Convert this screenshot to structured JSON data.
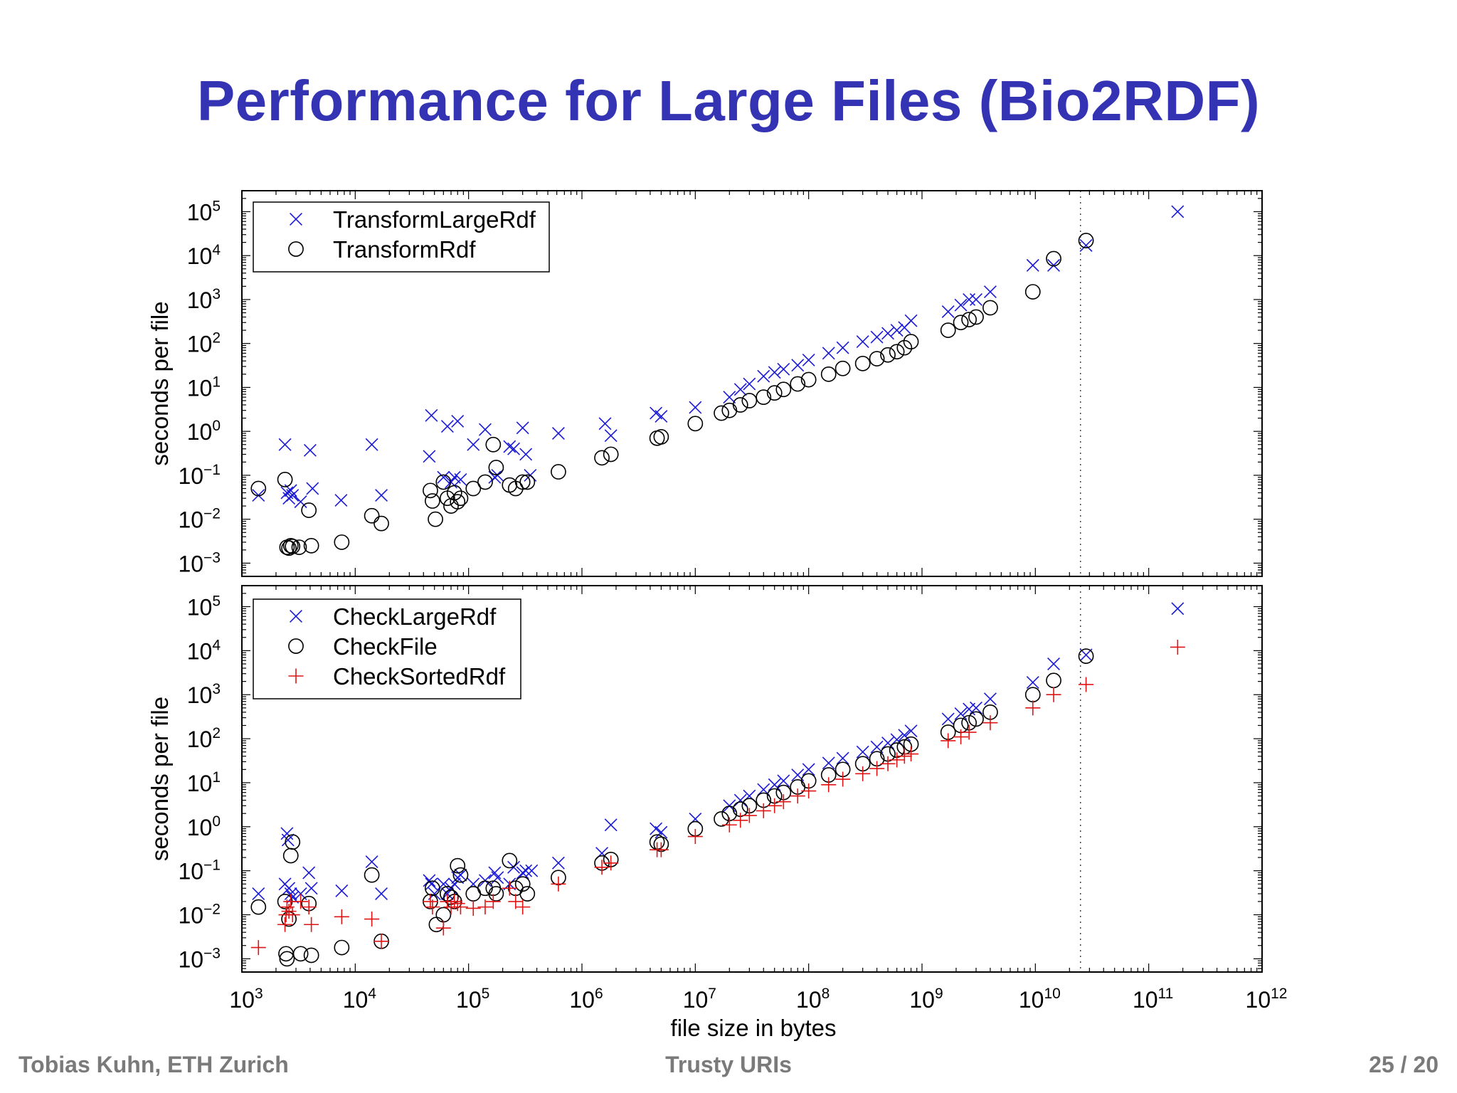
{
  "slide": {
    "title": "Performance for Large Files (Bio2RDF)",
    "footer_left": "Tobias Kuhn, ETH Zurich",
    "footer_center": "Trusty URIs",
    "footer_right": "25 / 20"
  },
  "chart_data": [
    {
      "type": "scatter",
      "panel": "top",
      "x_scale": "log",
      "y_scale": "log",
      "xlim": [
        1000,
        1000000000000
      ],
      "ylim": [
        0.0005,
        300000
      ],
      "ylabel": "seconds per file",
      "xlabel": "",
      "x_tick_labels": [],
      "y_ticks": [
        {
          "value": 0.001,
          "base": "10",
          "exp": "−3"
        },
        {
          "value": 0.01,
          "base": "10",
          "exp": "−2"
        },
        {
          "value": 0.1,
          "base": "10",
          "exp": "−1"
        },
        {
          "value": 1,
          "base": "10",
          "exp": "0"
        },
        {
          "value": 10,
          "base": "10",
          "exp": "1"
        },
        {
          "value": 100,
          "base": "10",
          "exp": "2"
        },
        {
          "value": 1000,
          "base": "10",
          "exp": "3"
        },
        {
          "value": 10000,
          "base": "10",
          "exp": "4"
        },
        {
          "value": 100000,
          "base": "10",
          "exp": "5"
        }
      ],
      "reference_line_x": 25000000000,
      "legend_position": "top-left",
      "series": [
        {
          "name": "TransformLargeRdf",
          "marker": "x",
          "color": "#1a1ad6",
          "x": [
            1400,
            2400,
            2500,
            2600,
            2700,
            2800,
            3300,
            4000,
            4200,
            7500,
            14000,
            17000,
            45000,
            47000,
            60000,
            65000,
            70000,
            75000,
            80000,
            85000,
            110000,
            140000,
            170000,
            180000,
            230000,
            250000,
            300000,
            320000,
            350000,
            620000,
            1600000,
            1800000,
            4500000,
            5000000,
            10000000,
            20000000,
            25000000,
            30000000,
            40000000,
            50000000,
            60000000,
            80000000,
            100000000,
            150000000,
            200000000,
            300000000,
            400000000,
            500000000,
            600000000,
            700000000,
            800000000,
            1700000000,
            2200000000,
            2600000000,
            3000000000,
            4000000000,
            9500000000,
            14500000000,
            28000000000,
            180000000000
          ],
          "y": [
            0.035,
            0.5,
            0.04,
            0.03,
            0.045,
            0.035,
            0.025,
            0.37,
            0.05,
            0.027,
            0.5,
            0.035,
            0.27,
            2.3,
            0.09,
            1.3,
            0.07,
            0.09,
            1.7,
            0.08,
            0.5,
            1.1,
            0.09,
            0.1,
            0.45,
            0.4,
            1.2,
            0.3,
            0.1,
            0.9,
            1.5,
            0.8,
            2.6,
            2.2,
            3.5,
            6,
            9,
            12,
            18,
            22,
            26,
            32,
            42,
            60,
            80,
            110,
            140,
            170,
            200,
            230,
            330,
            530,
            750,
            1000,
            1000,
            1500,
            6000,
            6000,
            17000,
            100000
          ]
        },
        {
          "name": "TransformRdf",
          "marker": "o",
          "color": "#000000",
          "x": [
            1400,
            2400,
            2500,
            2600,
            2700,
            2800,
            3200,
            3900,
            4100,
            7600,
            14000,
            17000,
            46000,
            48000,
            51000,
            60000,
            65000,
            70000,
            75000,
            80000,
            85000,
            110000,
            140000,
            165000,
            175000,
            230000,
            260000,
            300000,
            330000,
            620000,
            1500000,
            1800000,
            4600000,
            5000000,
            10000000,
            17000000,
            20000000,
            25000000,
            30000000,
            40000000,
            50000000,
            60000000,
            80000000,
            100000000,
            150000000,
            200000000,
            300000000,
            400000000,
            500000000,
            600000000,
            700000000,
            800000000,
            1700000000,
            2200000000,
            2600000000,
            3000000000,
            4000000000,
            9500000000,
            14500000000,
            28000000000
          ],
          "y": [
            0.05,
            0.08,
            0.0023,
            0.0022,
            0.0025,
            0.0024,
            0.0023,
            0.016,
            0.0025,
            0.003,
            0.012,
            0.008,
            0.045,
            0.026,
            0.01,
            0.07,
            0.03,
            0.02,
            0.04,
            0.025,
            0.03,
            0.05,
            0.07,
            0.5,
            0.15,
            0.06,
            0.05,
            0.07,
            0.07,
            0.12,
            0.25,
            0.3,
            0.7,
            0.75,
            1.5,
            2.6,
            3,
            4,
            5,
            6,
            7.5,
            9,
            12,
            15,
            20,
            27,
            35,
            45,
            55,
            65,
            80,
            110,
            200,
            300,
            350,
            400,
            650,
            1500,
            8500,
            22000
          ]
        }
      ]
    },
    {
      "type": "scatter",
      "panel": "bottom",
      "x_scale": "log",
      "y_scale": "log",
      "xlim": [
        1000,
        1000000000000
      ],
      "ylim": [
        0.0005,
        300000
      ],
      "ylabel": "seconds per file",
      "xlabel": "file size in bytes",
      "x_ticks": [
        {
          "value": 1000,
          "base": "10",
          "exp": "3"
        },
        {
          "value": 10000,
          "base": "10",
          "exp": "4"
        },
        {
          "value": 100000,
          "base": "10",
          "exp": "5"
        },
        {
          "value": 1000000,
          "base": "10",
          "exp": "6"
        },
        {
          "value": 10000000,
          "base": "10",
          "exp": "7"
        },
        {
          "value": 100000000,
          "base": "10",
          "exp": "8"
        },
        {
          "value": 1000000000,
          "base": "10",
          "exp": "9"
        },
        {
          "value": 10000000000,
          "base": "10",
          "exp": "10"
        },
        {
          "value": 100000000000,
          "base": "10",
          "exp": "11"
        },
        {
          "value": 1000000000000,
          "base": "10",
          "exp": "12"
        }
      ],
      "y_ticks": [
        {
          "value": 0.001,
          "base": "10",
          "exp": "−3"
        },
        {
          "value": 0.01,
          "base": "10",
          "exp": "−2"
        },
        {
          "value": 0.1,
          "base": "10",
          "exp": "−1"
        },
        {
          "value": 1,
          "base": "10",
          "exp": "0"
        },
        {
          "value": 10,
          "base": "10",
          "exp": "1"
        },
        {
          "value": 100,
          "base": "10",
          "exp": "2"
        },
        {
          "value": 1000,
          "base": "10",
          "exp": "3"
        },
        {
          "value": 10000,
          "base": "10",
          "exp": "4"
        },
        {
          "value": 100000,
          "base": "10",
          "exp": "5"
        }
      ],
      "reference_line_x": 25000000000,
      "legend_position": "top-left",
      "series": [
        {
          "name": "CheckLargeRdf",
          "marker": "x",
          "color": "#1a1ad6",
          "x": [
            1400,
            2400,
            2500,
            2550,
            2600,
            2700,
            2800,
            3300,
            3900,
            4100,
            7600,
            14000,
            17000,
            45000,
            47000,
            50000,
            60000,
            65000,
            70000,
            75000,
            80000,
            85000,
            110000,
            140000,
            170000,
            180000,
            230000,
            250000,
            300000,
            320000,
            360000,
            620000,
            1500000,
            1800000,
            4500000,
            5000000,
            10000000,
            20000000,
            25000000,
            30000000,
            40000000,
            50000000,
            60000000,
            80000000,
            100000000,
            150000000,
            200000000,
            300000000,
            400000000,
            500000000,
            600000000,
            700000000,
            800000000,
            1700000000,
            2200000000,
            2600000000,
            3000000000,
            4000000000,
            9500000000,
            14500000000,
            28000000000,
            180000000000
          ],
          "y": [
            0.03,
            0.05,
            0.7,
            0.5,
            0.04,
            0.03,
            0.025,
            0.03,
            0.09,
            0.04,
            0.035,
            0.16,
            0.03,
            0.06,
            0.05,
            0.03,
            0.05,
            0.03,
            0.04,
            0.05,
            0.07,
            0.08,
            0.05,
            0.06,
            0.09,
            0.07,
            0.05,
            0.12,
            0.09,
            0.1,
            0.1,
            0.15,
            0.25,
            1.1,
            0.9,
            0.75,
            1.5,
            3,
            4,
            5,
            7,
            9,
            11,
            15,
            20,
            28,
            36,
            50,
            65,
            80,
            95,
            120,
            150,
            280,
            370,
            470,
            500,
            800,
            1900,
            5000,
            8000,
            90000
          ]
        },
        {
          "name": "CheckFile",
          "marker": "o",
          "color": "#000000",
          "x": [
            1400,
            2400,
            2450,
            2500,
            2600,
            2700,
            2800,
            3300,
            3900,
            4100,
            7600,
            14000,
            17000,
            46000,
            48000,
            52000,
            60000,
            65000,
            70000,
            75000,
            80000,
            85000,
            110000,
            140000,
            165000,
            175000,
            230000,
            260000,
            300000,
            330000,
            620000,
            1500000,
            1800000,
            4600000,
            5000000,
            10000000,
            17000000,
            20000000,
            25000000,
            30000000,
            40000000,
            50000000,
            60000000,
            80000000,
            100000000,
            150000000,
            200000000,
            300000000,
            400000000,
            500000000,
            600000000,
            700000000,
            800000000,
            1700000000,
            2200000000,
            2600000000,
            3000000000,
            4000000000,
            9500000000,
            14500000000,
            28000000000
          ],
          "y": [
            0.015,
            0.02,
            0.0013,
            0.001,
            0.008,
            0.22,
            0.45,
            0.0013,
            0.018,
            0.0012,
            0.0018,
            0.08,
            0.0025,
            0.02,
            0.04,
            0.006,
            0.01,
            0.03,
            0.025,
            0.02,
            0.13,
            0.08,
            0.03,
            0.04,
            0.04,
            0.03,
            0.17,
            0.04,
            0.05,
            0.03,
            0.07,
            0.15,
            0.18,
            0.45,
            0.4,
            0.9,
            1.5,
            2,
            2.5,
            3,
            4,
            5,
            6,
            8,
            11,
            15,
            20,
            27,
            35,
            45,
            55,
            65,
            75,
            140,
            200,
            230,
            280,
            400,
            1000,
            2100,
            7500
          ]
        },
        {
          "name": "CheckSortedRdf",
          "marker": "+",
          "color": "#e01414",
          "x": [
            1400,
            2400,
            2450,
            2500,
            2600,
            2700,
            2800,
            3300,
            3900,
            4100,
            7600,
            14000,
            17000,
            46000,
            48000,
            60000,
            65000,
            70000,
            75000,
            80000,
            85000,
            110000,
            140000,
            165000,
            230000,
            260000,
            300000,
            620000,
            1500000,
            1800000,
            4600000,
            5000000,
            10000000,
            20000000,
            25000000,
            30000000,
            40000000,
            50000000,
            60000000,
            80000000,
            100000000,
            150000000,
            200000000,
            300000000,
            400000000,
            500000000,
            600000000,
            700000000,
            800000000,
            1700000000,
            2200000000,
            2600000000,
            4000000000,
            9500000000,
            14500000000,
            28000000000,
            180000000000
          ],
          "y": [
            0.0018,
            0.006,
            0.01,
            0.015,
            0.012,
            0.02,
            0.01,
            0.02,
            0.015,
            0.006,
            0.009,
            0.008,
            0.0025,
            0.02,
            0.015,
            0.005,
            0.02,
            0.015,
            0.02,
            0.018,
            0.015,
            0.014,
            0.015,
            0.02,
            0.04,
            0.02,
            0.015,
            0.05,
            0.12,
            0.15,
            0.3,
            0.3,
            0.6,
            1.1,
            1.4,
            1.8,
            2.3,
            3,
            3.7,
            5,
            6.5,
            9,
            12,
            16,
            21,
            27,
            33,
            40,
            45,
            90,
            110,
            140,
            230,
            500,
            1000,
            1700,
            12000
          ]
        }
      ]
    }
  ]
}
